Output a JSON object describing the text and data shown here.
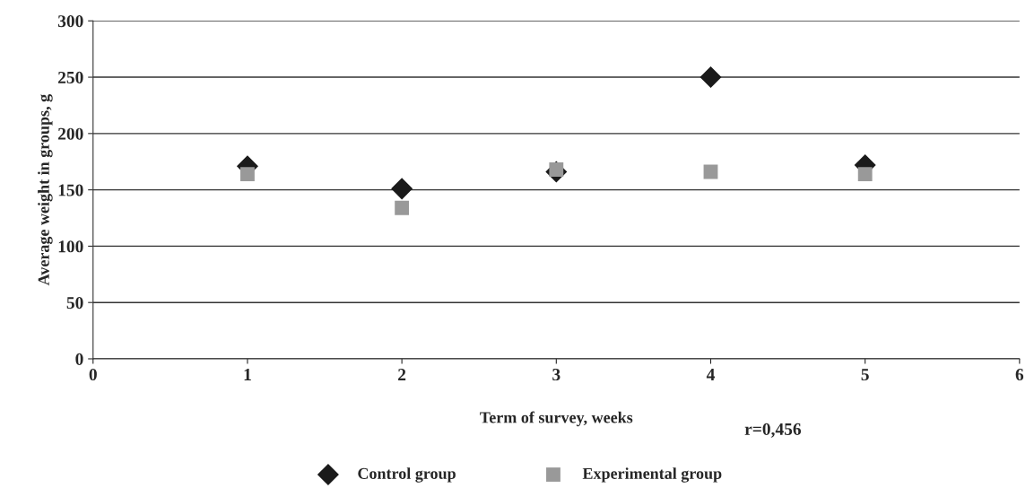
{
  "chart_data": {
    "type": "scatter",
    "xlabel": "Term of survey, weeks",
    "ylabel": "Average weight in groups, g",
    "x": [
      1,
      2,
      3,
      4,
      5
    ],
    "series": [
      {
        "name": "Control group",
        "color": "#1a1a1a",
        "marker": "diamond",
        "values": [
          171,
          151,
          166,
          250,
          172
        ]
      },
      {
        "name": "Experimental group",
        "color": "#999999",
        "marker": "square",
        "values": [
          164,
          134,
          168,
          166,
          164
        ]
      }
    ],
    "xlim": [
      0,
      6
    ],
    "xticks": [
      0,
      1,
      2,
      3,
      4,
      5,
      6
    ],
    "ylim": [
      0,
      300
    ],
    "yticks": [
      0,
      50,
      100,
      150,
      200,
      250,
      300
    ],
    "grid": "y",
    "legend": "bottom",
    "annotations": [
      "r=0,456"
    ]
  }
}
